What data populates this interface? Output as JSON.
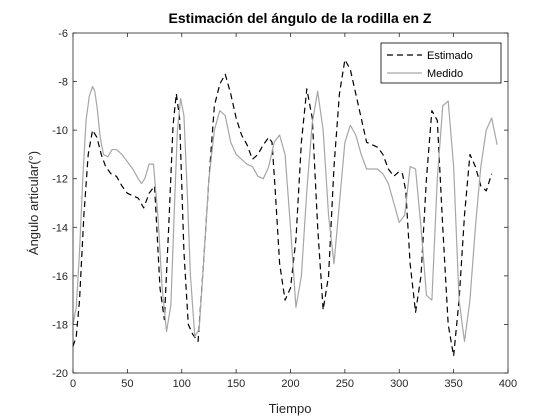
{
  "chart_data": {
    "type": "line",
    "title": "Estimación del ángulo de la rodilla en Z",
    "xlabel": "Tiempo",
    "ylabel": "Ángulo articular(°)",
    "xlim": [
      0,
      400
    ],
    "ylim": [
      -20,
      -6
    ],
    "xticks": [
      0,
      50,
      100,
      150,
      200,
      250,
      300,
      350,
      400
    ],
    "yticks": [
      -20,
      -18,
      -16,
      -14,
      -12,
      -10,
      -8,
      -6
    ],
    "grid": false,
    "legend_position": "top-right",
    "series": [
      {
        "name": "Estimado",
        "style": "dashed",
        "color": "#000000",
        "x": [
          0,
          3,
          6,
          10,
          14,
          18,
          22,
          26,
          30,
          35,
          40,
          45,
          50,
          55,
          60,
          65,
          70,
          75,
          80,
          84,
          88,
          92,
          95,
          98,
          102,
          106,
          110,
          115,
          120,
          125,
          130,
          135,
          140,
          145,
          150,
          155,
          160,
          165,
          170,
          175,
          180,
          183,
          186,
          190,
          195,
          200,
          205,
          210,
          215,
          220,
          225,
          230,
          235,
          240,
          245,
          250,
          255,
          260,
          265,
          270,
          275,
          280,
          285,
          290,
          295,
          300,
          303,
          306,
          310,
          315,
          320,
          325,
          330,
          335,
          340,
          345,
          350,
          355,
          360,
          365,
          370,
          375,
          380,
          385
        ],
        "values": [
          -18.9,
          -18.5,
          -17.0,
          -13.5,
          -11.0,
          -10.0,
          -10.3,
          -11.0,
          -11.5,
          -11.8,
          -11.9,
          -12.3,
          -12.6,
          -12.7,
          -12.8,
          -13.2,
          -12.6,
          -12.3,
          -16.5,
          -17.8,
          -14.0,
          -9.8,
          -8.5,
          -9.5,
          -15.0,
          -18.0,
          -18.4,
          -18.7,
          -15.5,
          -12.0,
          -9.0,
          -8.1,
          -7.7,
          -8.5,
          -9.5,
          -10.2,
          -10.6,
          -11.2,
          -11.0,
          -10.6,
          -10.3,
          -10.5,
          -12.5,
          -15.5,
          -17.0,
          -16.5,
          -14.5,
          -10.5,
          -8.3,
          -9.5,
          -14.0,
          -17.4,
          -16.0,
          -11.5,
          -8.5,
          -7.1,
          -7.5,
          -8.5,
          -9.5,
          -10.5,
          -10.6,
          -10.7,
          -11.0,
          -11.6,
          -11.9,
          -11.7,
          -11.8,
          -12.5,
          -15.5,
          -17.5,
          -16.0,
          -12.0,
          -9.2,
          -9.6,
          -14.0,
          -18.0,
          -19.3,
          -17.0,
          -13.5,
          -11.0,
          -11.5,
          -12.3,
          -12.5,
          -11.8
        ]
      },
      {
        "name": "Medido",
        "style": "solid",
        "color": "#a6a6a6",
        "x": [
          0,
          3,
          6,
          9,
          12,
          15,
          18,
          20,
          22,
          25,
          28,
          32,
          36,
          40,
          45,
          50,
          55,
          60,
          63,
          66,
          70,
          74,
          78,
          82,
          86,
          90,
          93,
          96,
          99,
          102,
          105,
          108,
          112,
          116,
          120,
          125,
          130,
          135,
          140,
          145,
          150,
          155,
          160,
          165,
          170,
          175,
          180,
          185,
          190,
          195,
          200,
          205,
          210,
          215,
          220,
          225,
          230,
          235,
          240,
          245,
          250,
          255,
          260,
          265,
          270,
          275,
          280,
          285,
          290,
          295,
          300,
          305,
          310,
          315,
          320,
          325,
          330,
          335,
          340,
          345,
          350,
          355,
          360,
          365,
          370,
          375,
          380,
          385,
          390
        ],
        "values": [
          -18.0,
          -17.3,
          -15.0,
          -12.0,
          -9.6,
          -8.6,
          -8.2,
          -8.4,
          -9.0,
          -10.3,
          -11.0,
          -11.1,
          -10.8,
          -10.8,
          -11.0,
          -11.3,
          -11.6,
          -12.0,
          -12.2,
          -12.0,
          -11.4,
          -11.4,
          -13.5,
          -16.5,
          -18.3,
          -17.2,
          -13.5,
          -10.0,
          -8.7,
          -9.4,
          -12.5,
          -16.0,
          -18.5,
          -18.2,
          -15.5,
          -12.0,
          -10.0,
          -9.2,
          -9.4,
          -10.5,
          -11.0,
          -11.2,
          -11.4,
          -11.5,
          -11.9,
          -12.0,
          -11.5,
          -10.5,
          -10.2,
          -11.0,
          -14.0,
          -17.3,
          -16.0,
          -12.5,
          -9.7,
          -8.4,
          -10.0,
          -13.5,
          -15.5,
          -13.0,
          -10.5,
          -9.8,
          -10.2,
          -11.0,
          -11.6,
          -11.6,
          -11.6,
          -11.8,
          -12.2,
          -13.0,
          -13.8,
          -13.5,
          -11.5,
          -11.6,
          -14.0,
          -16.8,
          -17.0,
          -12.0,
          -9.0,
          -8.8,
          -11.5,
          -17.0,
          -18.7,
          -17.0,
          -14.0,
          -11.5,
          -10.0,
          -9.5,
          -10.6
        ]
      }
    ]
  }
}
